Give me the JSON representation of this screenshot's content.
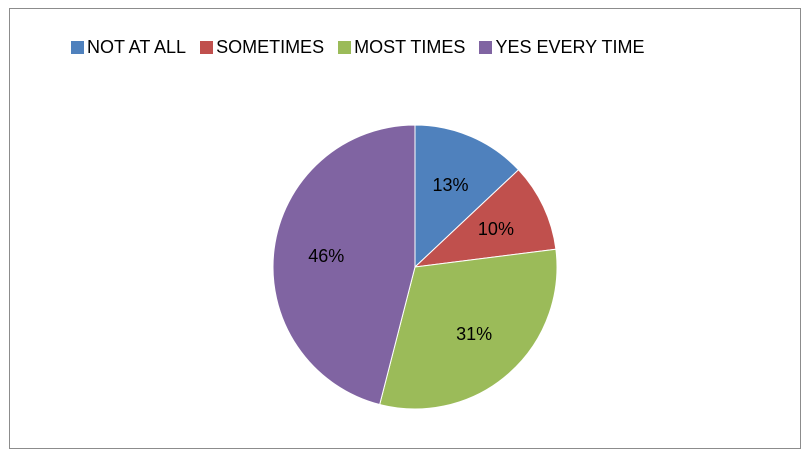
{
  "chart_data": {
    "type": "pie",
    "categories": [
      "NOT AT ALL",
      "SOMETIMES",
      "MOST TIMES",
      "YES EVERY TIME"
    ],
    "values": [
      13,
      10,
      31,
      46
    ],
    "data_labels": [
      "13%",
      "10%",
      "31%",
      "46%"
    ],
    "colors": [
      "#4f81bd",
      "#c0504d",
      "#9bbb59",
      "#8064a2"
    ],
    "legend_position": "top",
    "title": ""
  }
}
